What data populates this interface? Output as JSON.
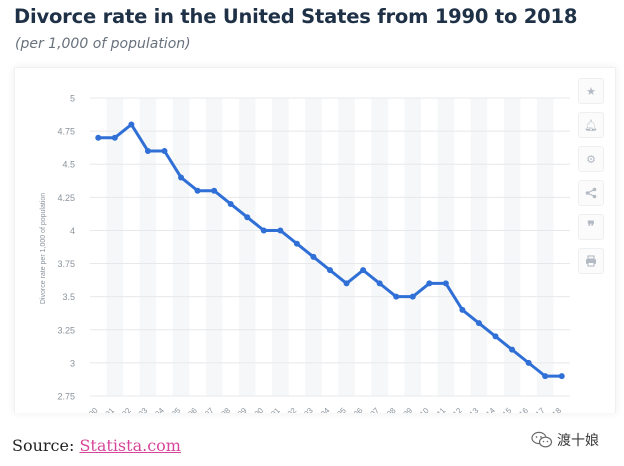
{
  "header": {
    "title": "Divorce rate in the United States from 1990 to 2018",
    "subtitle": "(per 1,000 of population)"
  },
  "toolbar": {
    "icons": [
      "star-icon",
      "bell-icon",
      "gear-icon",
      "share-icon",
      "quote-icon",
      "print-icon"
    ]
  },
  "chart_data": {
    "type": "line",
    "title": "Divorce rate in the United States from 1990 to 2018",
    "subtitle": "(per 1,000 of population)",
    "ylabel": "Divorce rate per 1,000 of population",
    "xlabel": "",
    "ylim": [
      2.75,
      5
    ],
    "yticks": [
      "5",
      "4.75",
      "4.5",
      "4.25",
      "4",
      "3.75",
      "3.5",
      "3.25",
      "3",
      "2.75"
    ],
    "categories": [
      "'90",
      "'91",
      "'92",
      "'93",
      "'94",
      "'95",
      "'96",
      "'97",
      "'98",
      "'99",
      "'00",
      "'01",
      "'02",
      "'03",
      "'04",
      "'05",
      "'06",
      "'07",
      "'08",
      "'09",
      "'10",
      "'11",
      "'12",
      "'13",
      "'14",
      "'15",
      "'16",
      "'17",
      "'18"
    ],
    "values": [
      4.7,
      4.7,
      4.8,
      4.6,
      4.6,
      4.4,
      4.3,
      4.3,
      4.2,
      4.1,
      4.0,
      4.0,
      3.9,
      3.8,
      3.7,
      3.6,
      3.7,
      3.6,
      3.5,
      3.5,
      3.6,
      3.6,
      3.4,
      3.3,
      3.2,
      3.1,
      3.0,
      2.9,
      2.9
    ],
    "series_color": "#2f6fd6",
    "grid": true,
    "legend": "none"
  },
  "source": {
    "prefix": "Source: ",
    "link": "Statista.com"
  },
  "watermark": {
    "text": "渡十娘"
  }
}
